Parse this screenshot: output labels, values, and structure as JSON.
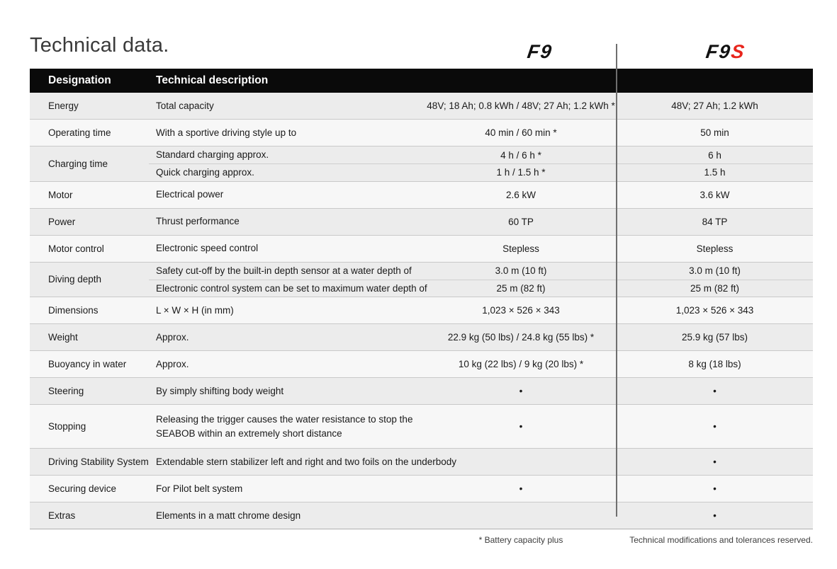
{
  "page": {
    "title": "Technical data.",
    "logo_f9": "F9",
    "logo_f9s_base": "F9",
    "logo_f9s_suffix": "S",
    "brand_red": "#e8251c"
  },
  "table": {
    "header": {
      "designation": "Designation",
      "description": "Technical description"
    },
    "rows": [
      {
        "designation": "Energy",
        "subrows": [
          {
            "description": "Total capacity",
            "f9": "48V; 18 Ah; 0.8 kWh / 48V; 27 Ah; 1.2 kWh *",
            "f9s": "48V; 27 Ah; 1.2 kWh"
          }
        ]
      },
      {
        "designation": "Operating time",
        "subrows": [
          {
            "description": "With a sportive driving style up to",
            "f9": "40 min / 60 min *",
            "f9s": "50 min"
          }
        ]
      },
      {
        "designation": "Charging time",
        "subrows": [
          {
            "description": "Standard charging approx.",
            "f9": "4 h / 6 h *",
            "f9s": "6 h"
          },
          {
            "description": "Quick charging approx.",
            "f9": "1 h / 1.5 h *",
            "f9s": "1.5 h"
          }
        ]
      },
      {
        "designation": "Motor",
        "subrows": [
          {
            "description": "Electrical power",
            "f9": "2.6 kW",
            "f9s": "3.6 kW"
          }
        ]
      },
      {
        "designation": "Power",
        "subrows": [
          {
            "description": "Thrust performance",
            "f9": "60 TP",
            "f9s": "84 TP"
          }
        ]
      },
      {
        "designation": "Motor control",
        "subrows": [
          {
            "description": "Electronic speed control",
            "f9": "Stepless",
            "f9s": "Stepless"
          }
        ]
      },
      {
        "designation": "Diving depth",
        "subrows": [
          {
            "description": "Safety cut-off by the built-in depth sensor at a water depth of",
            "f9": "3.0 m (10 ft)",
            "f9s": "3.0 m (10 ft)"
          },
          {
            "description": "Electronic control system can be set to maximum water depth of",
            "f9": "25 m (82 ft)",
            "f9s": "25 m (82 ft)"
          }
        ]
      },
      {
        "designation": "Dimensions",
        "subrows": [
          {
            "description": "L × W × H (in mm)",
            "f9": "1,023 × 526 × 343",
            "f9s": "1,023 × 526 × 343"
          }
        ]
      },
      {
        "designation": "Weight",
        "subrows": [
          {
            "description": "Approx.",
            "f9": "22.9 kg (50 lbs) / 24.8 kg (55 lbs) *",
            "f9s": "25.9 kg (57 lbs)"
          }
        ]
      },
      {
        "designation": "Buoyancy in water",
        "subrows": [
          {
            "description": "Approx.",
            "f9": "10 kg (22 lbs) / 9 kg (20 lbs) *",
            "f9s": "8 kg (18 lbs)"
          }
        ]
      },
      {
        "designation": "Steering",
        "subrows": [
          {
            "description": "By simply shifting body weight",
            "f9": "•",
            "f9s": "•"
          }
        ]
      },
      {
        "designation": "Stopping",
        "subrows": [
          {
            "description": "Releasing the trigger causes the water resistance to stop the\nSEABOB within an extremely short distance",
            "f9": "•",
            "f9s": "•"
          }
        ]
      },
      {
        "designation": "Driving Stability System",
        "subrows": [
          {
            "description": "Extendable stern stabilizer left and right and two foils on the underbody",
            "f9": "",
            "f9s": "•"
          }
        ]
      },
      {
        "designation": "Securing device",
        "subrows": [
          {
            "description": "For Pilot belt system",
            "f9": "•",
            "f9s": "•"
          }
        ]
      },
      {
        "designation": "Extras",
        "subrows": [
          {
            "description": "Elements in a matt chrome design",
            "f9": "",
            "f9s": "•"
          }
        ]
      }
    ]
  },
  "footer": {
    "f9_note": "* Battery capacity plus",
    "f9s_note": "Technical modifications and tolerances reserved."
  }
}
